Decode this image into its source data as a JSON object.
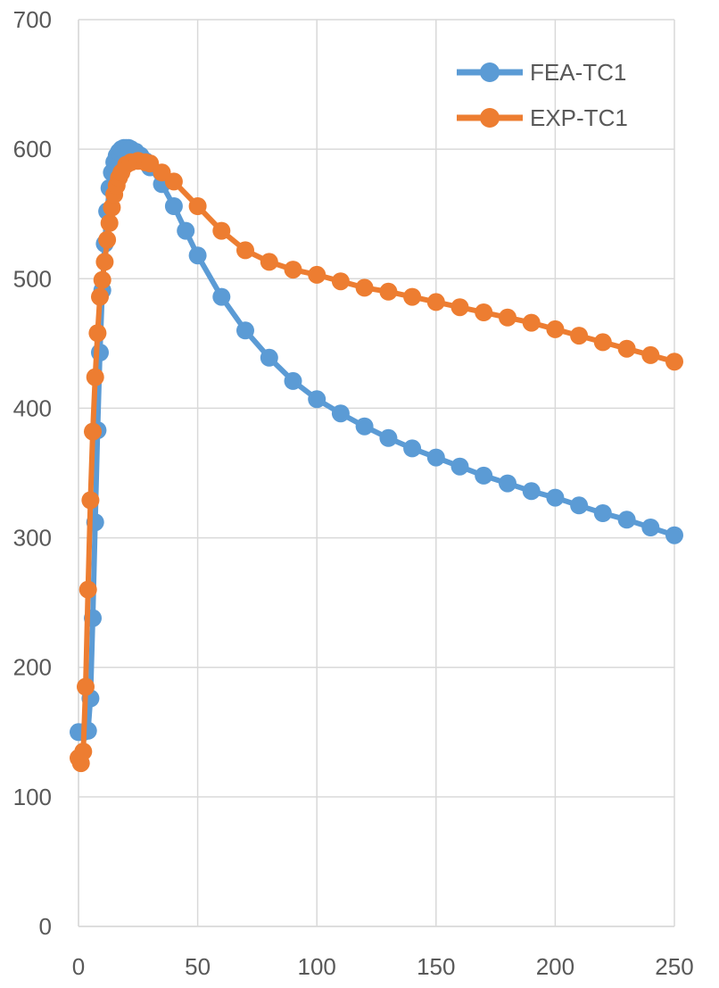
{
  "chart_data": {
    "type": "line",
    "title": "",
    "xlabel": "",
    "ylabel": "",
    "xlim": [
      0,
      250
    ],
    "ylim": [
      0,
      700
    ],
    "x_ticks": [
      0,
      50,
      100,
      150,
      200,
      250
    ],
    "y_ticks": [
      0,
      100,
      200,
      300,
      400,
      500,
      600,
      700
    ],
    "x_tick_labels": [
      "0",
      "50",
      "100",
      "150",
      "200",
      "250"
    ],
    "y_tick_labels": [
      "0",
      "100",
      "200",
      "300",
      "400",
      "500",
      "600",
      "700"
    ],
    "grid": true,
    "legend_position": "top-right",
    "markers": true,
    "series": [
      {
        "name": "FEA-TC1",
        "color": "#5b9bd5",
        "x": [
          0,
          2,
          4,
          5,
          6,
          7,
          8,
          9,
          10,
          11,
          12,
          13,
          14,
          15,
          16,
          17,
          18,
          19,
          20,
          21,
          22,
          24,
          26,
          28,
          30,
          35,
          40,
          45,
          50,
          60,
          70,
          80,
          90,
          100,
          110,
          120,
          130,
          140,
          150,
          160,
          170,
          180,
          190,
          200,
          210,
          220,
          230,
          240,
          250
        ],
        "y": [
          150,
          150,
          151,
          176,
          238,
          312,
          383,
          443,
          491,
          527,
          552,
          570,
          582,
          590,
          595,
          598,
          600,
          601,
          601,
          601,
          600,
          598,
          595,
          591,
          586,
          573,
          556,
          537,
          518,
          486,
          460,
          439,
          421,
          407,
          396,
          386,
          377,
          369,
          362,
          355,
          348,
          342,
          336,
          331,
          325,
          319,
          314,
          308,
          302
        ]
      },
      {
        "name": "EXP-TC1",
        "color": "#ed7d31",
        "x": [
          0,
          1,
          2,
          3,
          4,
          5,
          6,
          7,
          8,
          9,
          10,
          11,
          12,
          13,
          14,
          15,
          16,
          17,
          18,
          20,
          22,
          25,
          28,
          30,
          35,
          40,
          50,
          60,
          70,
          80,
          90,
          100,
          110,
          120,
          130,
          140,
          150,
          160,
          170,
          180,
          190,
          200,
          210,
          220,
          230,
          240,
          250
        ],
        "y": [
          130,
          126,
          135,
          185,
          260,
          329,
          382,
          424,
          458,
          486,
          499,
          513,
          530,
          543,
          555,
          565,
          572,
          578,
          582,
          588,
          590,
          591,
          590,
          589,
          582,
          575,
          556,
          537,
          522,
          513,
          507,
          503,
          498,
          493,
          490,
          486,
          482,
          478,
          474,
          470,
          466,
          461,
          456,
          451,
          446,
          441,
          436
        ]
      }
    ]
  }
}
